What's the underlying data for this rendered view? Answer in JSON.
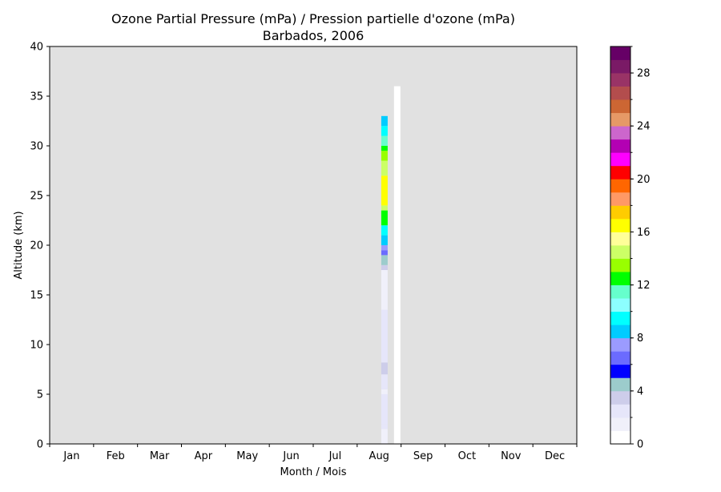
{
  "chart_data": {
    "type": "heatmap",
    "title_line1": "Ozone Partial Pressure (mPa) / Pression partielle d'ozone (mPa)",
    "title_line2": "Barbados, 2006",
    "xlabel": "Month / Mois",
    "ylabel": "Altitude (km)",
    "x_categories": [
      "Jan",
      "Feb",
      "Mar",
      "Apr",
      "May",
      "Jun",
      "Jul",
      "Aug",
      "Sep",
      "Oct",
      "Nov",
      "Dec"
    ],
    "y_range": [
      0,
      40
    ],
    "y_ticks": [
      "0",
      "5",
      "10",
      "15",
      "20",
      "25",
      "30",
      "35",
      "40"
    ],
    "background_color": "#e1e1e1",
    "colorbar": {
      "range": [
        0,
        30
      ],
      "ticks": [
        "0",
        "4",
        "8",
        "12",
        "16",
        "20",
        "24",
        "28"
      ],
      "colors": [
        "#ffffff",
        "#f0f0fa",
        "#e6e6fa",
        "#cdcdea",
        "#9ccccc",
        "#0000ff",
        "#6b6bff",
        "#9b9bff",
        "#00ccff",
        "#00ffff",
        "#8cffff",
        "#66ffcc",
        "#00ff00",
        "#99ff00",
        "#ccff66",
        "#ffff99",
        "#ffff00",
        "#ffcc00",
        "#ff9966",
        "#ff6600",
        "#ff0000",
        "#ff00ff",
        "#b300b3",
        "#cc66cc",
        "#e69966",
        "#cc6633",
        "#b34d4d",
        "#993366",
        "#7a1a66",
        "#660066"
      ]
    },
    "profiles": [
      {
        "month": "Aug",
        "day": 18,
        "top_km": 33.0,
        "layers": [
          {
            "from": 0.0,
            "to": 1.5,
            "value": 1.5
          },
          {
            "from": 1.5,
            "to": 2.0,
            "value": 2.5
          },
          {
            "from": 2.0,
            "to": 5.0,
            "value": 2.0
          },
          {
            "from": 5.0,
            "to": 5.5,
            "value": 1.5
          },
          {
            "from": 5.5,
            "to": 7.0,
            "value": 2.0
          },
          {
            "from": 7.0,
            "to": 8.2,
            "value": 3.5
          },
          {
            "from": 8.2,
            "to": 13.5,
            "value": 2.0
          },
          {
            "from": 13.5,
            "to": 17.5,
            "value": 1.5
          },
          {
            "from": 17.5,
            "to": 18.0,
            "value": 3.5
          },
          {
            "from": 18.0,
            "to": 19.0,
            "value": 4.5
          },
          {
            "from": 19.0,
            "to": 19.5,
            "value": 6.5
          },
          {
            "from": 19.5,
            "to": 20.0,
            "value": 7.5
          },
          {
            "from": 20.0,
            "to": 21.0,
            "value": 8.5
          },
          {
            "from": 21.0,
            "to": 22.0,
            "value": 9.5
          },
          {
            "from": 22.0,
            "to": 23.5,
            "value": 12.5
          },
          {
            "from": 23.5,
            "to": 24.0,
            "value": 14.5
          },
          {
            "from": 24.0,
            "to": 27.0,
            "value": 16.5
          },
          {
            "from": 27.0,
            "to": 28.5,
            "value": 14.5
          },
          {
            "from": 28.5,
            "to": 29.5,
            "value": 13.5
          },
          {
            "from": 29.5,
            "to": 30.0,
            "value": 12.5
          },
          {
            "from": 30.0,
            "to": 31.0,
            "value": 11.5
          },
          {
            "from": 31.0,
            "to": 32.0,
            "value": 9.5
          },
          {
            "from": 32.0,
            "to": 33.0,
            "value": 8.5
          }
        ]
      },
      {
        "month": "Aug",
        "day": 27,
        "top_km": 36.0,
        "layers": [
          {
            "from": 0.0,
            "to": 36.0,
            "value": 0.5
          }
        ]
      }
    ]
  }
}
